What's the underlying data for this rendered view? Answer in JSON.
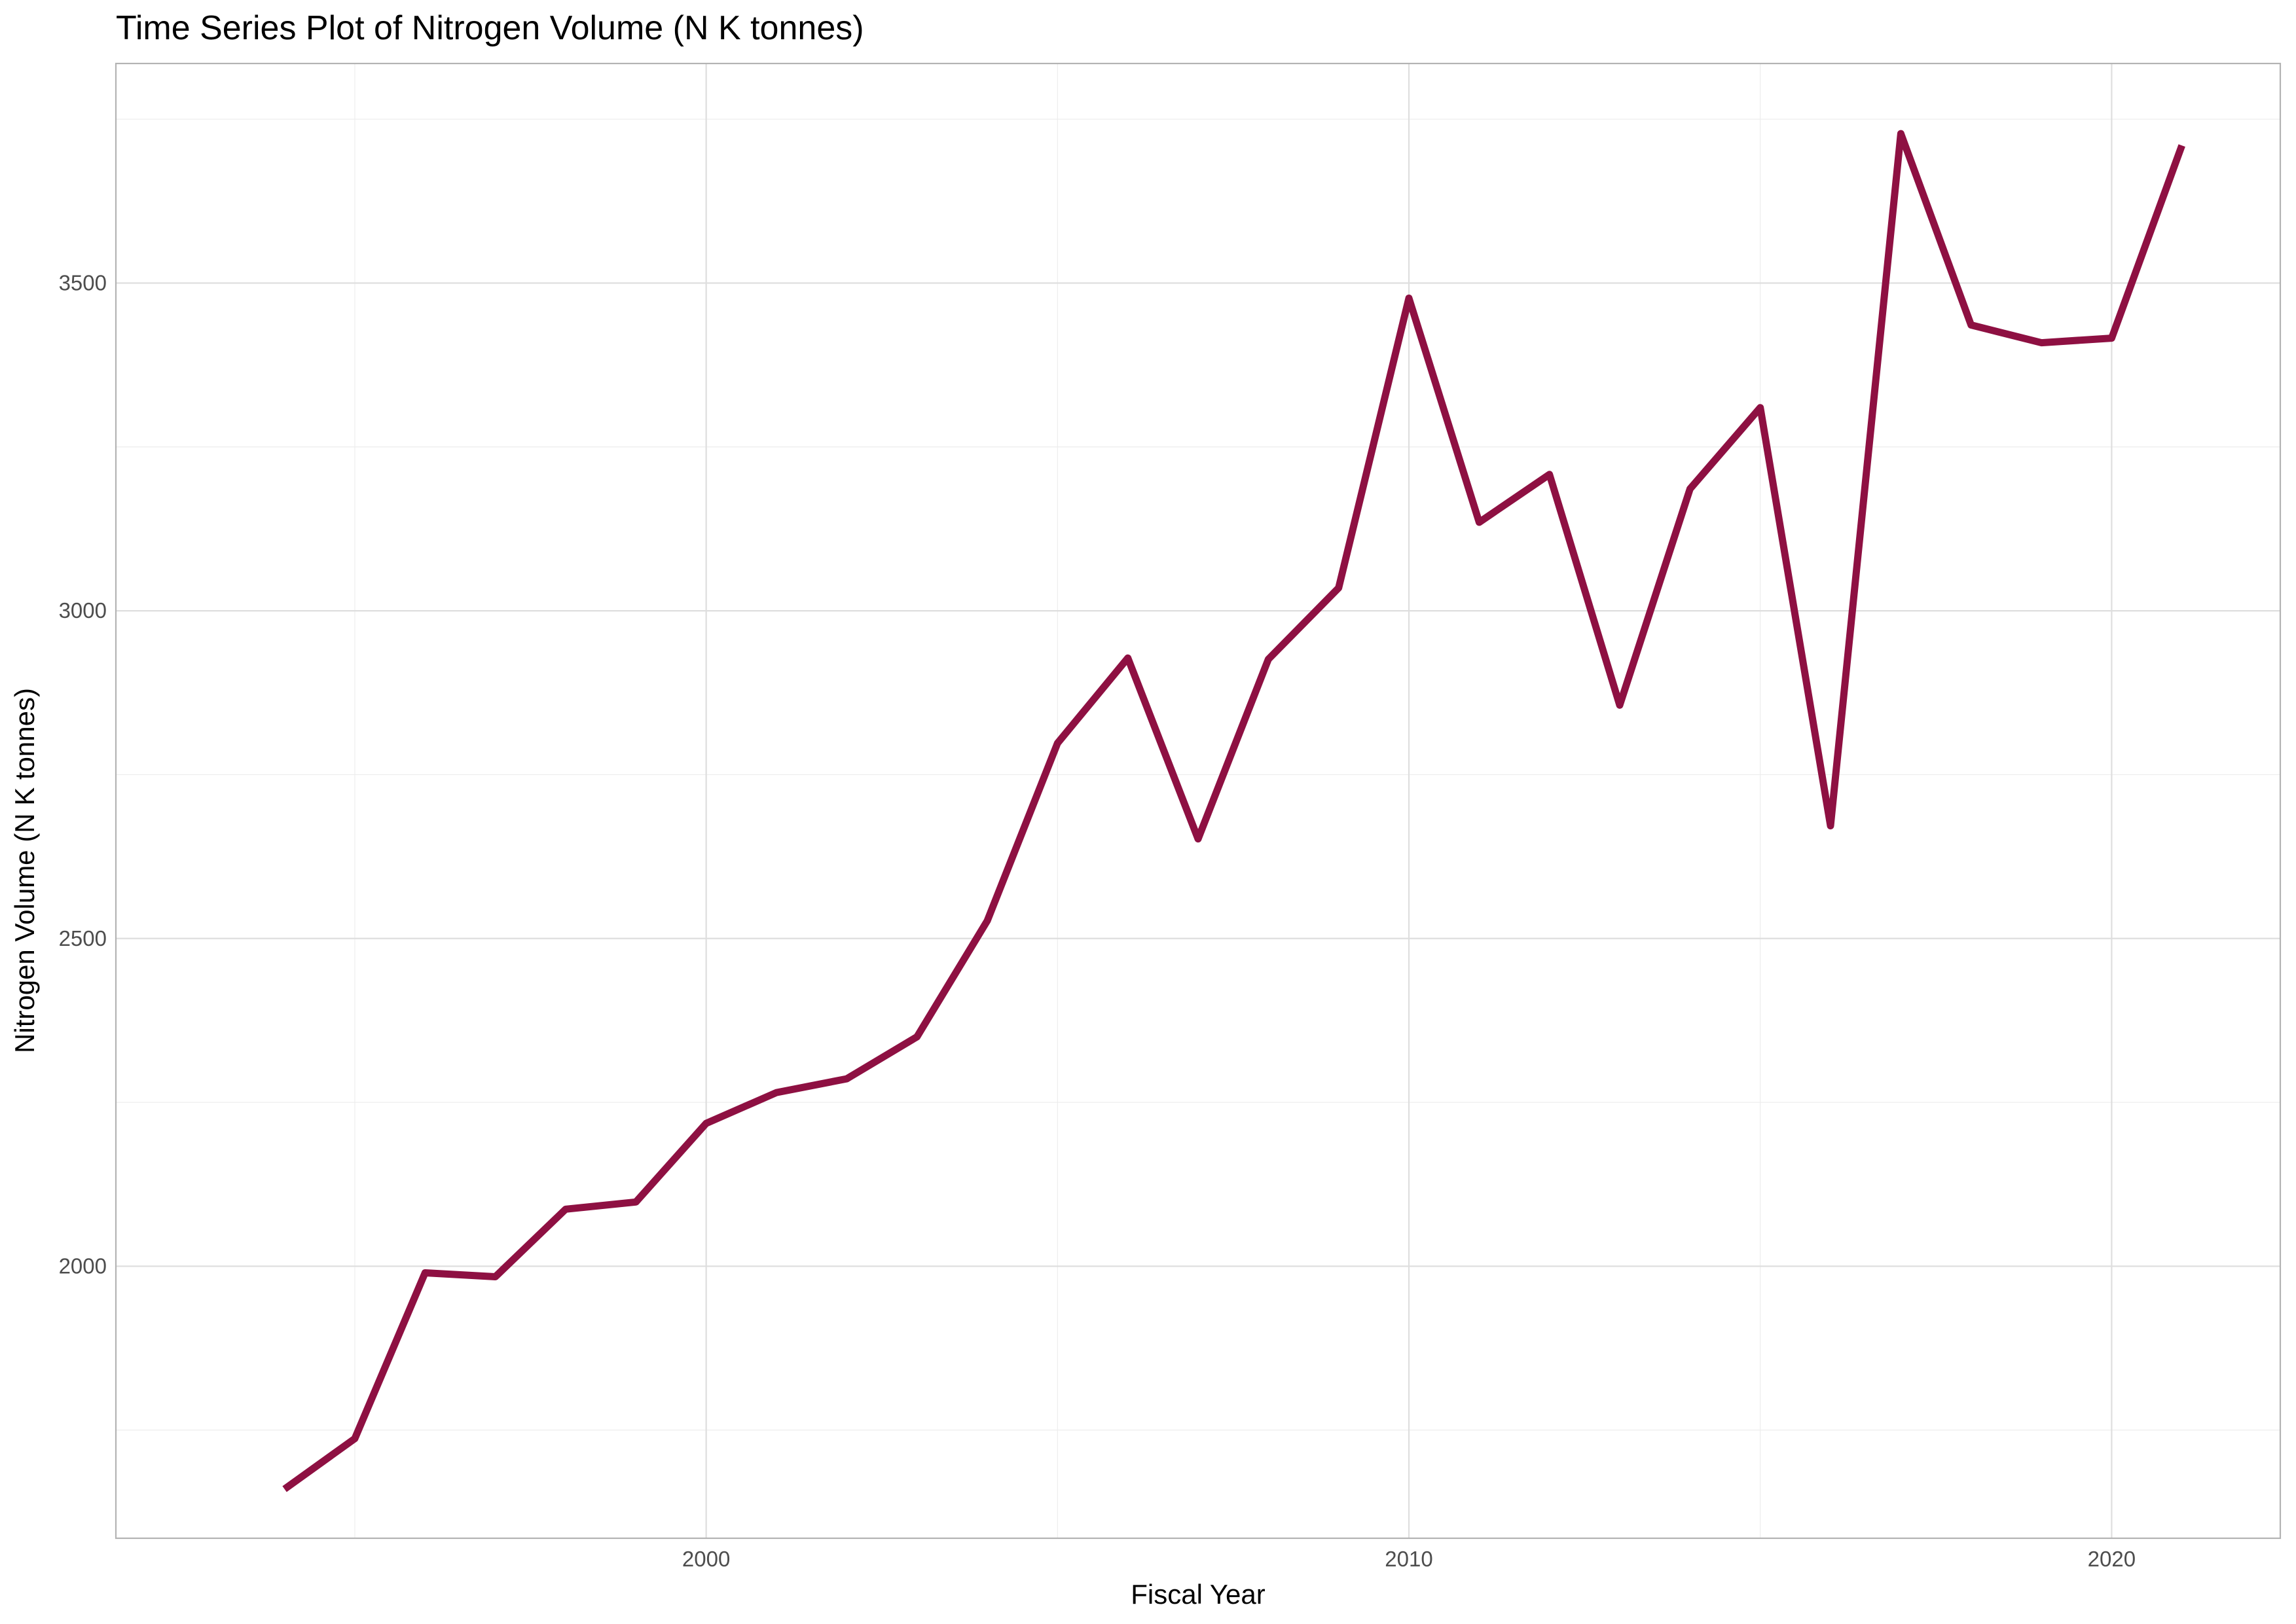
{
  "chart_data": {
    "type": "line",
    "title": "Time Series Plot of Nitrogen Volume (N K tonnes)",
    "xlabel": "Fiscal Year",
    "ylabel": "Nitrogen Volume (N K tonnes)",
    "x_ticks": [
      2000,
      2010,
      2020
    ],
    "y_ticks": [
      2000,
      2500,
      3000,
      3500
    ],
    "xlim": [
      1991.6,
      2022.4
    ],
    "ylim": [
      1585,
      3835
    ],
    "grid": true,
    "legend": "none",
    "line_color": "#8E1042",
    "series": [
      {
        "x": [
          1994,
          1995,
          1996,
          1997,
          1998,
          1999,
          2000,
          2001,
          2002,
          2003,
          2004,
          2005,
          2006,
          2007,
          2008,
          2009,
          2010,
          2011,
          2012,
          2013,
          2014,
          2015,
          2016,
          2017,
          2018,
          2019,
          2020,
          2021
        ],
        "values": [
          1660,
          1737,
          1990,
          1984,
          2087,
          2098,
          2218,
          2265,
          2286,
          2350,
          2527,
          2798,
          2928,
          2652,
          2926,
          3035,
          3477,
          3135,
          3208,
          2856,
          3186,
          3310,
          2672,
          3728,
          3436,
          3409,
          3416,
          3710
        ]
      }
    ]
  }
}
